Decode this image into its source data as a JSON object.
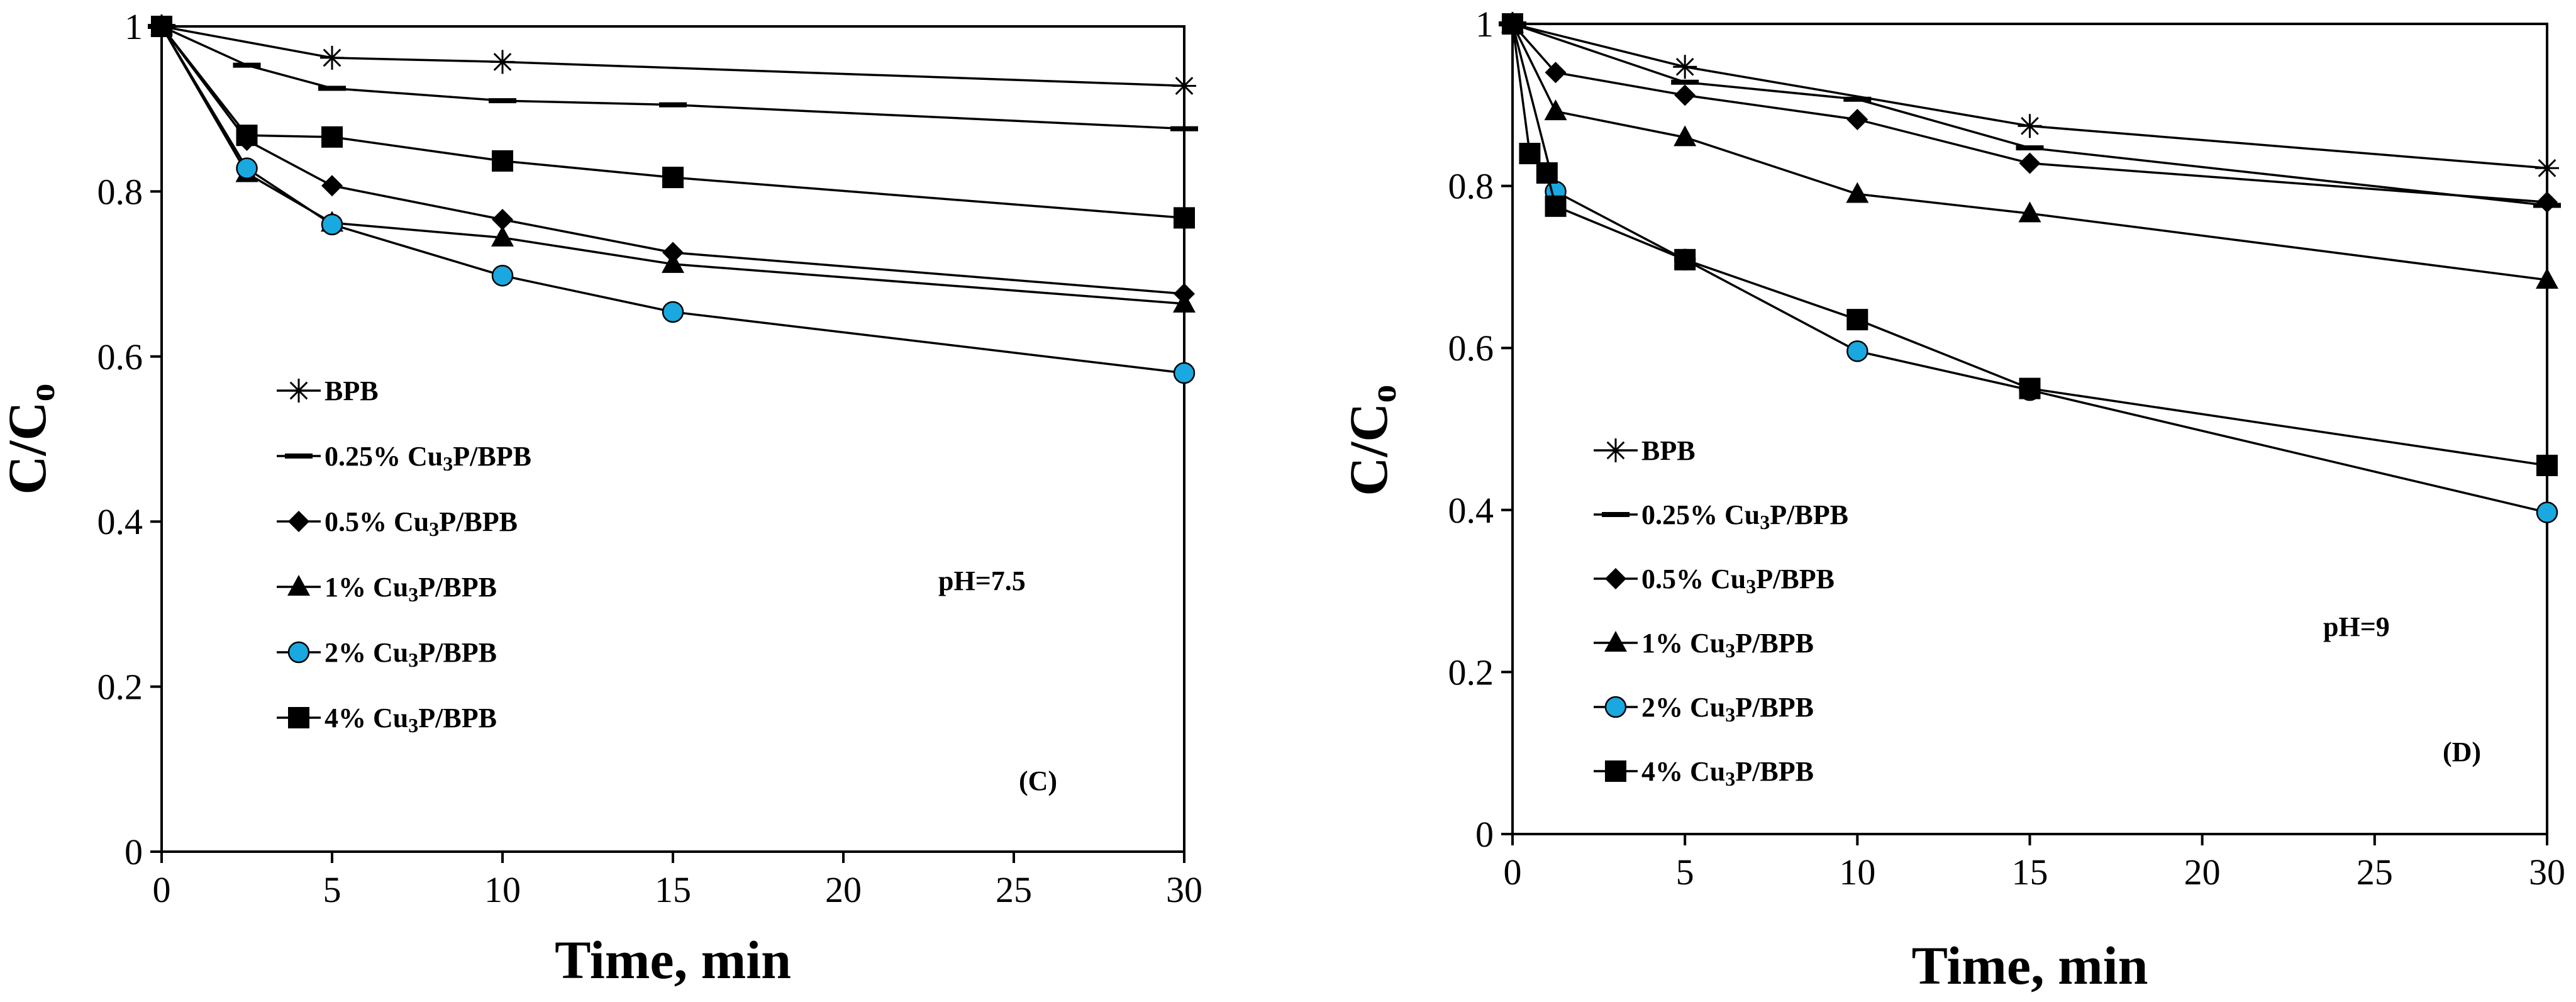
{
  "figure": {
    "panels": [
      "C",
      "D"
    ]
  },
  "chart_data": [
    {
      "type": "line",
      "panel_label": "(C)",
      "annotation": "pH=7.5",
      "xlabel": "Time, min",
      "ylabel": "C/C",
      "ylabel_sub": "o",
      "xlim": [
        0,
        30
      ],
      "ylim": [
        0,
        1
      ],
      "xticks": [
        0,
        5,
        10,
        15,
        20,
        25,
        30
      ],
      "yticks": [
        0,
        0.2,
        0.4,
        0.6,
        0.8,
        1
      ],
      "ytick_labels": [
        "0",
        "0.2",
        "0.4",
        "0.6",
        "0.8",
        "1"
      ],
      "grid": false,
      "legend_position": "left-center",
      "series": [
        {
          "name": "BPB",
          "label_parts": [
            "BPB"
          ],
          "marker": "star",
          "color": "#000000",
          "x": [
            0,
            5,
            10,
            30
          ],
          "y": [
            1.0,
            0.962,
            0.957,
            0.928
          ]
        },
        {
          "name": "0.25% Cu3P/BPB",
          "label_parts": [
            "0.25% Cu",
            "3",
            "P/BPB"
          ],
          "marker": "dash",
          "color": "#000000",
          "x": [
            0,
            2.5,
            5,
            10,
            15,
            30
          ],
          "y": [
            1.0,
            0.953,
            0.925,
            0.91,
            0.905,
            0.876
          ]
        },
        {
          "name": "0.5% Cu3P/BPB",
          "label_parts": [
            "0.5% Cu",
            "3",
            "P/BPB"
          ],
          "marker": "diamond",
          "color": "#000000",
          "x": [
            0,
            2.5,
            5,
            10,
            15,
            30
          ],
          "y": [
            1.0,
            0.862,
            0.807,
            0.766,
            0.726,
            0.676
          ]
        },
        {
          "name": "1% Cu3P/BPB",
          "label_parts": [
            "1% Cu",
            "3",
            "P/BPB"
          ],
          "marker": "triangle",
          "color": "#000000",
          "x": [
            0,
            2.5,
            5,
            10,
            15,
            30
          ],
          "y": [
            1.0,
            0.822,
            0.762,
            0.744,
            0.712,
            0.664
          ]
        },
        {
          "name": "2% Cu3P/BPB",
          "label_parts": [
            "2% Cu",
            "3",
            "P/BPB"
          ],
          "marker": "circle",
          "color": "#1aa8e0",
          "x": [
            0,
            2.5,
            5,
            10,
            15,
            30
          ],
          "y": [
            1.0,
            0.828,
            0.76,
            0.698,
            0.654,
            0.58
          ]
        },
        {
          "name": "4% Cu3P/BPB",
          "label_parts": [
            "4% Cu",
            "3",
            "P/BPB"
          ],
          "marker": "square",
          "color": "#000000",
          "x": [
            0,
            2.5,
            5,
            10,
            15,
            30
          ],
          "y": [
            1.0,
            0.868,
            0.866,
            0.837,
            0.817,
            0.768
          ]
        }
      ]
    },
    {
      "type": "line",
      "panel_label": "(D)",
      "annotation": "pH=9",
      "xlabel": "Time, min",
      "ylabel": "C/C",
      "ylabel_sub": "o",
      "xlim": [
        0,
        30
      ],
      "ylim": [
        0,
        1
      ],
      "xticks": [
        0,
        5,
        10,
        15,
        20,
        25,
        30
      ],
      "yticks": [
        0,
        0.2,
        0.4,
        0.6,
        0.8,
        1
      ],
      "ytick_labels": [
        "0",
        "0.2",
        "0.4",
        "0.6",
        "0.8",
        "1"
      ],
      "grid": false,
      "legend_position": "left-lower",
      "series": [
        {
          "name": "BPB",
          "label_parts": [
            "BPB"
          ],
          "marker": "star",
          "color": "#000000",
          "x": [
            0,
            5,
            15,
            30
          ],
          "y": [
            1.0,
            0.947,
            0.874,
            0.822
          ]
        },
        {
          "name": "0.25% Cu3P/BPB",
          "label_parts": [
            "0.25% Cu",
            "3",
            "P/BPB"
          ],
          "marker": "dash",
          "color": "#000000",
          "x": [
            0,
            5,
            10,
            15,
            30
          ],
          "y": [
            1.0,
            0.928,
            0.907,
            0.847,
            0.776
          ]
        },
        {
          "name": "0.5% Cu3P/BPB",
          "label_parts": [
            "0.5% Cu",
            "3",
            "P/BPB"
          ],
          "marker": "diamond",
          "color": "#000000",
          "x": [
            0,
            1.25,
            5,
            10,
            15,
            30
          ],
          "y": [
            1.0,
            0.94,
            0.912,
            0.882,
            0.828,
            0.78
          ]
        },
        {
          "name": "1% Cu3P/BPB",
          "label_parts": [
            "1% Cu",
            "3",
            "P/BPB"
          ],
          "marker": "triangle",
          "color": "#000000",
          "x": [
            0,
            1.25,
            5,
            10,
            15,
            30
          ],
          "y": [
            1.0,
            0.892,
            0.86,
            0.79,
            0.766,
            0.684
          ]
        },
        {
          "name": "2% Cu3P/BPB",
          "label_parts": [
            "2% Cu",
            "3",
            "P/BPB"
          ],
          "marker": "circle",
          "color": "#1aa8e0",
          "x": [
            0,
            1.25,
            5,
            10,
            15,
            30
          ],
          "y": [
            1.0,
            0.793,
            0.709,
            0.596,
            0.548,
            0.397
          ]
        },
        {
          "name": "4% Cu3P/BPB",
          "label_parts": [
            "4% Cu",
            "3",
            "P/BPB"
          ],
          "marker": "square",
          "color": "#000000",
          "x": [
            0,
            0.5,
            1.0,
            1.25,
            5,
            10,
            15,
            30
          ],
          "y": [
            1.0,
            0.84,
            0.816,
            0.775,
            0.709,
            0.635,
            0.55,
            0.455
          ]
        }
      ]
    }
  ]
}
